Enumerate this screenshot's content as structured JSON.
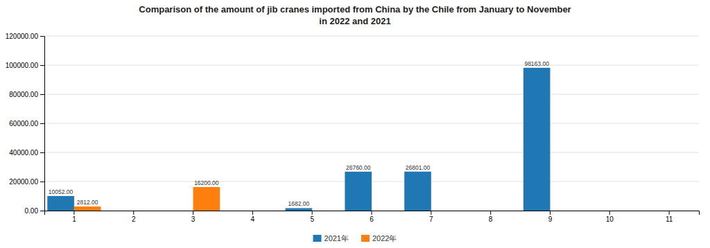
{
  "chart_data": {
    "type": "bar",
    "title": "Comparison of the amount of jib cranes imported from China by the Chile from January to November\nin 2022 and 2021",
    "categories": [
      "1",
      "2",
      "3",
      "4",
      "5",
      "6",
      "7",
      "8",
      "9",
      "10",
      "11"
    ],
    "series": [
      {
        "name": "2021年",
        "values": [
          10052.0,
          0,
          0,
          0,
          1682.0,
          26760.0,
          26801.0,
          0,
          98163.0,
          0,
          0
        ],
        "value_labels": [
          "10052.00",
          null,
          null,
          null,
          "1682.00",
          "26760.00",
          "26801.00",
          null,
          "98163.00",
          null,
          null
        ]
      },
      {
        "name": "2022年",
        "values": [
          2812.0,
          0,
          16200.0,
          0,
          0,
          0,
          0,
          0,
          0,
          0,
          0
        ],
        "value_labels": [
          "2812.00",
          null,
          "16200.00",
          null,
          null,
          null,
          null,
          null,
          null,
          null,
          null
        ]
      }
    ],
    "ylim": [
      0,
      120000
    ],
    "yticks": [
      {
        "value": 0,
        "label": "0.00"
      },
      {
        "value": 20000,
        "label": "20000.00"
      },
      {
        "value": 40000,
        "label": "40000.00"
      },
      {
        "value": 60000,
        "label": "60000.00"
      },
      {
        "value": 80000,
        "label": "80000.00"
      },
      {
        "value": 100000,
        "label": "100000.00"
      },
      {
        "value": 120000,
        "label": "120000.00"
      }
    ],
    "grid": true,
    "legend": "bottom",
    "data_labels": true
  }
}
